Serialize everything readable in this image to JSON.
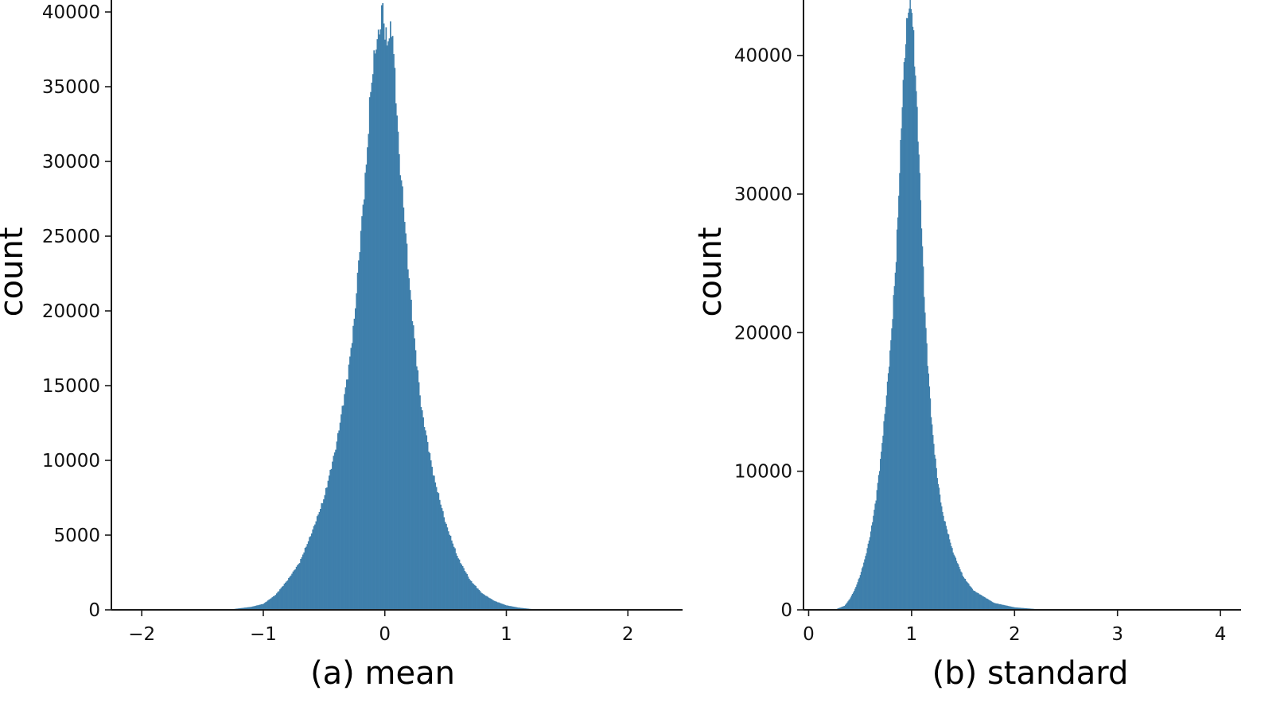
{
  "chart_data": [
    {
      "type": "histogram",
      "caption": "(a) mean",
      "xlabel": "",
      "ylabel": "count",
      "xlim": [
        -2.25,
        2.45
      ],
      "ylim": [
        0,
        40800
      ],
      "xticks": [
        -2,
        -1,
        0,
        1,
        2
      ],
      "xtick_labels": [
        "−2",
        "−1",
        "0",
        "1",
        "2"
      ],
      "yticks": [
        0,
        5000,
        10000,
        15000,
        20000,
        25000,
        30000,
        35000,
        40000
      ],
      "ytick_labels": [
        "0",
        "5000",
        "10000",
        "15000",
        "20000",
        "25000",
        "30000",
        "35000",
        "40000"
      ],
      "color": "#3f7fab",
      "grid": false,
      "density_profile": {
        "x": [
          -1.3,
          -1.1,
          -1.0,
          -0.9,
          -0.8,
          -0.7,
          -0.6,
          -0.5,
          -0.4,
          -0.3,
          -0.25,
          -0.2,
          -0.15,
          -0.12,
          -0.1,
          -0.08,
          -0.05,
          -0.03,
          -0.02,
          0.0,
          0.02,
          0.04,
          0.06,
          0.08,
          0.1,
          0.12,
          0.15,
          0.2,
          0.25,
          0.3,
          0.4,
          0.5,
          0.6,
          0.7,
          0.8,
          0.9,
          1.0,
          1.1,
          1.2,
          1.3,
          1.4
        ],
        "y": [
          0,
          200,
          400,
          1000,
          2000,
          3200,
          5200,
          7500,
          11000,
          16000,
          19500,
          25000,
          30000,
          34500,
          36000,
          37500,
          38500,
          39500,
          40800,
          38500,
          38000,
          38500,
          39000,
          36000,
          33000,
          30000,
          27500,
          22000,
          17500,
          13500,
          9000,
          5800,
          3500,
          2000,
          1100,
          600,
          300,
          150,
          60,
          20,
          0
        ]
      }
    },
    {
      "type": "histogram",
      "caption": "(b) standard",
      "xlabel": "",
      "ylabel": "count",
      "xlim": [
        -0.05,
        4.2
      ],
      "ylim": [
        0,
        44000
      ],
      "xticks": [
        0,
        1,
        2,
        3,
        4
      ],
      "xtick_labels": [
        "0",
        "1",
        "2",
        "3",
        "4"
      ],
      "yticks": [
        0,
        10000,
        20000,
        30000,
        40000
      ],
      "ytick_labels": [
        "0",
        "10000",
        "20000",
        "30000",
        "40000"
      ],
      "color": "#3f7fab",
      "grid": false,
      "density_profile": {
        "x": [
          0.25,
          0.35,
          0.4,
          0.45,
          0.5,
          0.55,
          0.6,
          0.65,
          0.7,
          0.75,
          0.8,
          0.85,
          0.88,
          0.9,
          0.92,
          0.95,
          0.97,
          0.99,
          1.0,
          1.02,
          1.05,
          1.08,
          1.1,
          1.12,
          1.15,
          1.2,
          1.25,
          1.3,
          1.4,
          1.5,
          1.6,
          1.8,
          2.0,
          2.2,
          2.5,
          2.8
        ],
        "y": [
          0,
          300,
          800,
          1500,
          2500,
          3800,
          5500,
          7800,
          11000,
          15000,
          19500,
          25500,
          31000,
          35000,
          38500,
          42000,
          43500,
          44000,
          43500,
          41000,
          36500,
          31000,
          27000,
          23000,
          18500,
          13000,
          9500,
          7000,
          4200,
          2400,
          1400,
          500,
          180,
          60,
          15,
          0
        ]
      }
    }
  ]
}
